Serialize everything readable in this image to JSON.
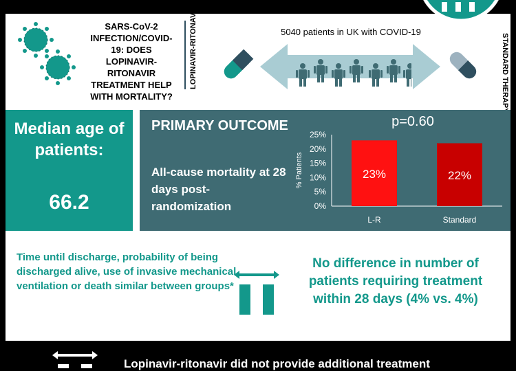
{
  "question": "SARS-CoV-2 INFECTION/COVID-19: DOES LOPINAVIR-RITONAVIR TREATMENT HELP WITH MORTALITY?",
  "arms": {
    "left_label": "LOPINAVIR-RITONAVIR",
    "right_label": "STANDARD THERAPY"
  },
  "patients_text": "5040 patients in UK with COVID-19",
  "median_age": {
    "title": "Median age of patients:",
    "value": "66.2"
  },
  "primary_outcome": {
    "title": "PRIMARY OUTCOME",
    "description": "All-cause mortality at 28 days post-randomization",
    "p_value": "p=0.60"
  },
  "chart_data": {
    "type": "bar",
    "categories": [
      "L-R",
      "Standard"
    ],
    "values": [
      23,
      22
    ],
    "value_labels": [
      "23%",
      "22%"
    ],
    "ylabel": "% Patients",
    "ylim": [
      0,
      25
    ],
    "yticks": [
      "0%",
      "5%",
      "10%",
      "15%",
      "20%",
      "25%"
    ],
    "grid": false,
    "colors": [
      "#ff1111",
      "#c80000"
    ]
  },
  "secondary_text": "Time until discharge, probability of being discharged alive, use of invasive mechanical ventilation or death similar between groups*",
  "no_difference_text": "No difference in number of patients requiring treatment within 28 days (4% vs. 4%)",
  "conclusion_text": "Lopinavir-ritonavir did not provide additional treatment",
  "colors": {
    "teal": "#13988b",
    "slate": "#3f6b73",
    "arrow": "#a9ccd3",
    "person": "#3f6b73",
    "pill_dark": "#3f6b73"
  }
}
